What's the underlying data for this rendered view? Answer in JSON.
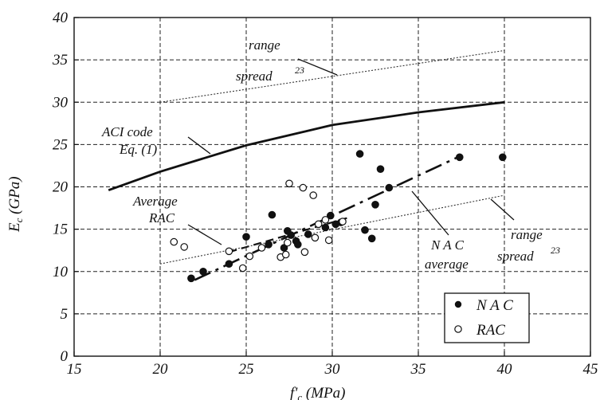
{
  "chart_data": {
    "type": "scatter",
    "xlabel": "f'c (MPa)",
    "xlabel_main": "f'",
    "xlabel_sub": "c",
    "xlabel_unit": " (MPa)",
    "ylabel": "Ec (GPa)",
    "ylabel_main": "E",
    "ylabel_sub": "c",
    "ylabel_unit": " (GPa)",
    "xlim": [
      15,
      45
    ],
    "ylim": [
      0,
      40
    ],
    "x_ticks": [
      15,
      20,
      25,
      30,
      35,
      40,
      45
    ],
    "y_ticks": [
      0,
      5,
      10,
      15,
      20,
      25,
      30,
      35,
      40
    ],
    "grid": true,
    "legend_position": "bottom-right",
    "series": [
      {
        "name": "NAC",
        "marker": "filled-circle",
        "points": [
          [
            21.8,
            9.2
          ],
          [
            22.5,
            10.0
          ],
          [
            24.0,
            10.9
          ],
          [
            25.0,
            14.1
          ],
          [
            26.3,
            13.2
          ],
          [
            26.5,
            16.7
          ],
          [
            27.2,
            12.8
          ],
          [
            27.4,
            14.8
          ],
          [
            27.6,
            14.3
          ],
          [
            27.9,
            13.6
          ],
          [
            28.0,
            13.2
          ],
          [
            28.6,
            14.4
          ],
          [
            29.6,
            15.2
          ],
          [
            29.9,
            16.6
          ],
          [
            30.2,
            15.6
          ],
          [
            30.5,
            15.8
          ],
          [
            31.6,
            23.9
          ],
          [
            31.9,
            14.9
          ],
          [
            32.3,
            13.9
          ],
          [
            32.5,
            17.9
          ],
          [
            32.8,
            22.1
          ],
          [
            33.3,
            19.9
          ],
          [
            37.4,
            23.5
          ],
          [
            39.9,
            23.5
          ]
        ]
      },
      {
        "name": "RAC",
        "marker": "open-circle",
        "points": [
          [
            20.8,
            13.5
          ],
          [
            21.4,
            12.9
          ],
          [
            24.0,
            12.4
          ],
          [
            24.8,
            10.4
          ],
          [
            25.2,
            11.8
          ],
          [
            25.9,
            12.8
          ],
          [
            27.0,
            11.7
          ],
          [
            27.3,
            12.0
          ],
          [
            27.4,
            13.4
          ],
          [
            27.5,
            20.4
          ],
          [
            28.3,
            19.9
          ],
          [
            28.4,
            12.3
          ],
          [
            28.9,
            19.0
          ],
          [
            29.0,
            14.0
          ],
          [
            29.2,
            15.6
          ],
          [
            29.6,
            16.1
          ],
          [
            29.8,
            13.7
          ],
          [
            30.6,
            15.9
          ]
        ]
      }
    ],
    "lines": [
      {
        "id": "aci",
        "style": "solid-thick",
        "points": [
          [
            17,
            19.6
          ],
          [
            20,
            21.8
          ],
          [
            25,
            24.9
          ],
          [
            30,
            27.3
          ],
          [
            35,
            28.8
          ],
          [
            40,
            30.0
          ]
        ]
      },
      {
        "id": "nac-average",
        "style": "long-dash",
        "points": [
          [
            22,
            9.0
          ],
          [
            37.5,
            23.7
          ]
        ]
      },
      {
        "id": "rac-average",
        "style": "short-dash",
        "points": [
          [
            24.0,
            12.3
          ],
          [
            31.0,
            16.4
          ]
        ]
      },
      {
        "id": "range-upper",
        "style": "dotted",
        "points": [
          [
            20,
            30.0
          ],
          [
            40,
            36.1
          ]
        ]
      },
      {
        "id": "range-lower",
        "style": "dotted",
        "points": [
          [
            20,
            10.9
          ],
          [
            40,
            19.0
          ]
        ]
      }
    ],
    "annotations": [
      {
        "lines": [
          "range",
          "spread"
        ],
        "superscript": "23"
      },
      {
        "lines": [
          "ACI code",
          "Eq. (1)"
        ]
      },
      {
        "lines": [
          "Average",
          "RAC"
        ]
      },
      {
        "lines": [
          "N A C",
          "average"
        ]
      },
      {
        "lines": [
          "range",
          "spread"
        ],
        "superscript": "23"
      }
    ],
    "legend": [
      {
        "label": "N A C",
        "marker": "filled-circle"
      },
      {
        "label": "RAC",
        "marker": "open-circle"
      }
    ]
  }
}
